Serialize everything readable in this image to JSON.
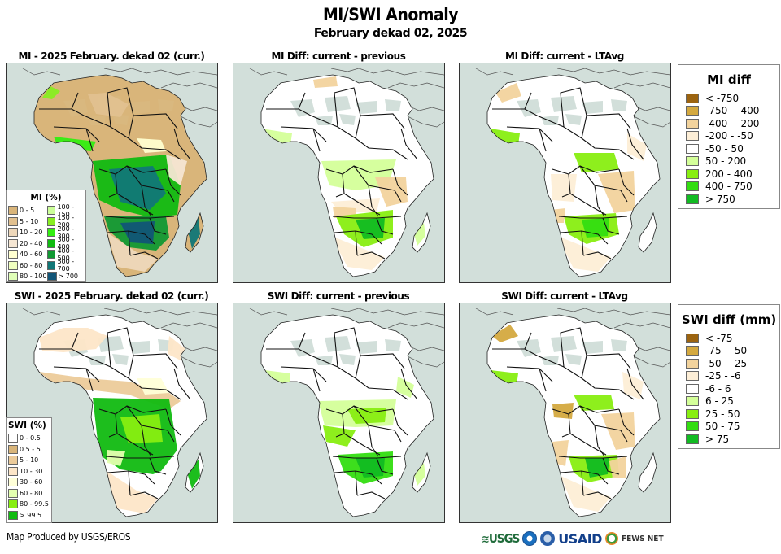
{
  "header": {
    "title": "MI/SWI Anomaly",
    "subtitle": "February dekad 02, 2025"
  },
  "panels": [
    {
      "id": "mi-current",
      "title": "MI - 2025 February. dekad 02 (curr.)",
      "scheme": "mi"
    },
    {
      "id": "mi-diff-previous",
      "title": "MI Diff: current - previous",
      "scheme": "midiffprev"
    },
    {
      "id": "mi-diff-ltavg",
      "title": "MI Diff: current - LTAvg",
      "scheme": "midiffavg"
    },
    {
      "id": "swi-current",
      "title": "SWI - 2025 February. dekad 02 (curr.)",
      "scheme": "swi"
    },
    {
      "id": "swi-diff-previous",
      "title": "SWI Diff: current - previous",
      "scheme": "swidiffprev"
    },
    {
      "id": "swi-diff-ltavg",
      "title": "SWI Diff: current - LTAvg",
      "scheme": "swidiffavg"
    }
  ],
  "legends": {
    "mi_pct": {
      "title": "MI (%)",
      "items": [
        {
          "label": "0 - 5",
          "color": "#d9b57a"
        },
        {
          "label": "5 - 10",
          "color": "#e2c190"
        },
        {
          "label": "10 - 20",
          "color": "#eed8bb"
        },
        {
          "label": "20 - 40",
          "color": "#f5e6d3"
        },
        {
          "label": "40 - 60",
          "color": "#ffffd0"
        },
        {
          "label": "60 - 80",
          "color": "#f0ffc0"
        },
        {
          "label": "80 - 100",
          "color": "#e0ffb8"
        },
        {
          "label": "100 - 150",
          "color": "#ccff99"
        },
        {
          "label": "150 - 200",
          "color": "#88ee22"
        },
        {
          "label": "200 - 300",
          "color": "#33ee11"
        },
        {
          "label": "300 - 400",
          "color": "#11bb11"
        },
        {
          "label": "400 - 500",
          "color": "#119933"
        },
        {
          "label": "500 - 700",
          "color": "#117777"
        },
        {
          "label": "> 700",
          "color": "#115577"
        }
      ]
    },
    "swi_pct": {
      "title": "SWI (%)",
      "items": [
        {
          "label": "0 - 0.5",
          "color": "#ffffff"
        },
        {
          "label": "0.5 - 5",
          "color": "#d9b57a"
        },
        {
          "label": "5 - 10",
          "color": "#eccb9a"
        },
        {
          "label": "10 - 30",
          "color": "#fde6c8"
        },
        {
          "label": "30 - 60",
          "color": "#ffffd8"
        },
        {
          "label": "60 - 80",
          "color": "#e4ffb0"
        },
        {
          "label": "80 - 99.5",
          "color": "#88ee11"
        },
        {
          "label": "> 99.5",
          "color": "#11bb11"
        }
      ]
    },
    "mi_diff": {
      "title": "MI diff",
      "items": [
        {
          "label": "< -750",
          "color": "#9c6410"
        },
        {
          "label": "-750 - -400",
          "color": "#d4a93f"
        },
        {
          "label": "-400 - -200",
          "color": "#f2d39d"
        },
        {
          "label": "-200 - -50",
          "color": "#fdeed6"
        },
        {
          "label": "-50 - 50",
          "color": "#ffffff"
        },
        {
          "label": "50 - 200",
          "color": "#d4ff99"
        },
        {
          "label": "200 - 400",
          "color": "#88ee11"
        },
        {
          "label": "400 - 750",
          "color": "#33dd11"
        },
        {
          "label": "> 750",
          "color": "#11bb22"
        }
      ]
    },
    "swi_diff": {
      "title": "SWI diff (mm)",
      "items": [
        {
          "label": "< -75",
          "color": "#9c6410"
        },
        {
          "label": "-75 - -50",
          "color": "#d4a93f"
        },
        {
          "label": "-50 - -25",
          "color": "#f2d39d"
        },
        {
          "label": "-25 - -6",
          "color": "#fdeed6"
        },
        {
          "label": "-6 - 6",
          "color": "#ffffff"
        },
        {
          "label": "6 - 25",
          "color": "#d4ff99"
        },
        {
          "label": "25 - 50",
          "color": "#88ee11"
        },
        {
          "label": "50 - 75",
          "color": "#33dd11"
        },
        {
          "label": "> 75",
          "color": "#11bb22"
        }
      ]
    }
  },
  "map_colors": {
    "ocean": "#d2dfda",
    "nodata": "#d2dfda",
    "border": "#111111"
  },
  "footer": {
    "credit": "Map Produced by USGS/EROS",
    "logos": [
      "USGS",
      "NOAA",
      "USAID",
      "FEWS NET"
    ],
    "usgs_label": "USGS",
    "usaid_label": "USAID",
    "fews_label": "FEWS NET"
  }
}
